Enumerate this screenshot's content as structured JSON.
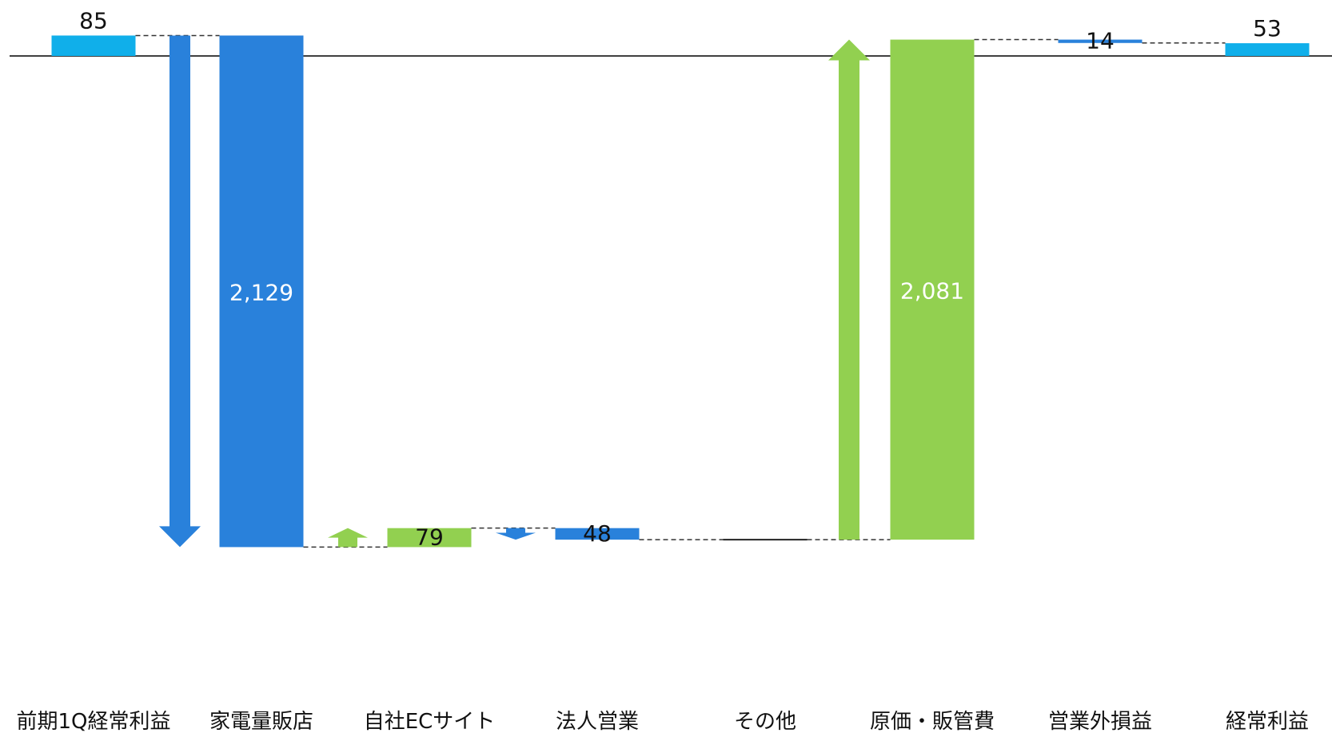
{
  "chart_data": {
    "type": "waterfall",
    "baseline": 0,
    "categories": [
      "前期1Q経常利益",
      "家電量販店",
      "自社ECサイト",
      "法人営業",
      "その他",
      "原価・販管費",
      "営業外損益",
      "経常利益"
    ],
    "steps": [
      {
        "category": "前期1Q経常利益",
        "kind": "total",
        "start": 0,
        "end": 85,
        "value": 85,
        "label": "85"
      },
      {
        "category": "家電量販店",
        "kind": "decrease",
        "start": 85,
        "end": -2044,
        "value": -2129,
        "label": "2,129"
      },
      {
        "category": "自社ECサイト",
        "kind": "increase",
        "start": -2044,
        "end": -1965,
        "value": 79,
        "label": "79"
      },
      {
        "category": "法人営業",
        "kind": "decrease",
        "start": -1965,
        "end": -2013,
        "value": -48,
        "label": "48"
      },
      {
        "category": "その他",
        "kind": "decrease",
        "start": -2013,
        "end": -2013,
        "value": 0,
        "label": ""
      },
      {
        "category": "原価・販管費",
        "kind": "increase",
        "start": -2013,
        "end": 68,
        "value": 2081,
        "label": "2,081"
      },
      {
        "category": "営業外損益",
        "kind": "decrease",
        "start": 68,
        "end": 54,
        "value": -14,
        "label": "14"
      },
      {
        "category": "経常利益",
        "kind": "total",
        "start": 0,
        "end": 53,
        "value": 53,
        "label": "53"
      }
    ],
    "colors": {
      "total": "#10AFEA",
      "decrease": "#2981DB",
      "increase": "#92D050",
      "axis": "#000000",
      "connector": "#333333",
      "label_dark": "#111111",
      "label_light": "#ffffff"
    }
  }
}
